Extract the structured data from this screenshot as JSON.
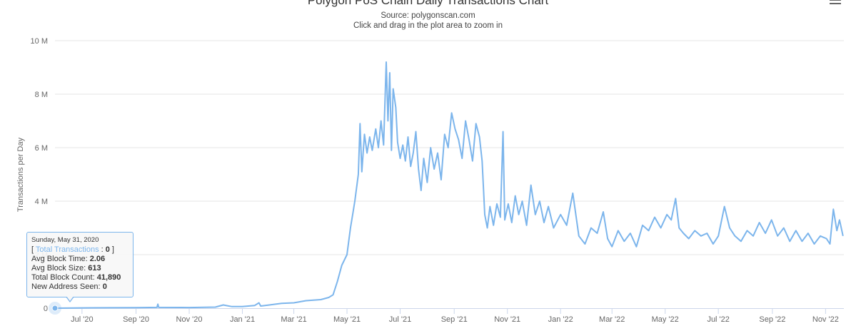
{
  "header": {
    "title": "Polygon PoS Chain Daily Transactions Chart",
    "subtitle_source": "Source: polygonscan.com",
    "subtitle_hint": "Click and drag in the plot area to zoom in",
    "menu_icon": "hamburger-menu-icon"
  },
  "colors": {
    "series": "#7cb5ec",
    "grid": "#e6e6e6",
    "axis_text": "#666666"
  },
  "tooltip": {
    "date": "Sunday, May 31, 2020",
    "series_label": "Total Transactions",
    "series_value": "0",
    "avg_block_time_label": "Avg Block Time:",
    "avg_block_time": "2.06",
    "avg_block_size_label": "Avg Block Size:",
    "avg_block_size": "613",
    "total_block_count_label": "Total Block Count:",
    "total_block_count": "41,890",
    "new_address_label": "New Address Seen:",
    "new_address": "0"
  },
  "chart_data": {
    "type": "line",
    "title": "Polygon PoS Chain Daily Transactions Chart",
    "subtitle": "Source: polygonscan.com",
    "ylabel": "Transactions per Day",
    "xlabel": "",
    "ylim": [
      0,
      10000000
    ],
    "yticks": [
      0,
      2000000,
      4000000,
      6000000,
      8000000,
      10000000
    ],
    "ytick_labels": [
      "0",
      "2 M",
      "4 M",
      "6 M",
      "8 M",
      "10 M"
    ],
    "xtick_labels": [
      "Jul '20",
      "Sep '20",
      "Nov '20",
      "Jan '21",
      "Mar '21",
      "May '21",
      "Jul '21",
      "Sep '21",
      "Nov '21",
      "Jan '22",
      "Mar '22",
      "May '22",
      "Jul '22",
      "Sep '22",
      "Nov '22"
    ],
    "xtick_dates": [
      "2020-07-01",
      "2020-09-01",
      "2020-11-01",
      "2021-01-01",
      "2021-03-01",
      "2021-05-01",
      "2021-07-01",
      "2021-09-01",
      "2021-11-01",
      "2022-01-01",
      "2022-03-01",
      "2022-05-01",
      "2022-07-01",
      "2022-09-01",
      "2022-11-01"
    ],
    "grid": true,
    "legend": "none",
    "series": [
      {
        "values": [
          {
            "x": "2020-05-31",
            "y": 0
          },
          {
            "x": "2020-07-01",
            "y": 10000
          },
          {
            "x": "2020-08-01",
            "y": 15000
          },
          {
            "x": "2020-09-01",
            "y": 20000
          },
          {
            "x": "2020-09-25",
            "y": 30000
          },
          {
            "x": "2020-09-26",
            "y": 150000
          },
          {
            "x": "2020-09-27",
            "y": 30000
          },
          {
            "x": "2020-11-01",
            "y": 25000
          },
          {
            "x": "2020-12-01",
            "y": 40000
          },
          {
            "x": "2020-12-10",
            "y": 120000
          },
          {
            "x": "2020-12-20",
            "y": 60000
          },
          {
            "x": "2021-01-01",
            "y": 60000
          },
          {
            "x": "2021-01-15",
            "y": 100000
          },
          {
            "x": "2021-01-20",
            "y": 200000
          },
          {
            "x": "2021-01-22",
            "y": 80000
          },
          {
            "x": "2021-02-01",
            "y": 120000
          },
          {
            "x": "2021-02-15",
            "y": 180000
          },
          {
            "x": "2021-03-01",
            "y": 200000
          },
          {
            "x": "2021-03-15",
            "y": 280000
          },
          {
            "x": "2021-04-01",
            "y": 320000
          },
          {
            "x": "2021-04-10",
            "y": 400000
          },
          {
            "x": "2021-04-15",
            "y": 500000
          },
          {
            "x": "2021-04-20",
            "y": 1000000
          },
          {
            "x": "2021-04-25",
            "y": 1600000
          },
          {
            "x": "2021-05-01",
            "y": 2000000
          },
          {
            "x": "2021-05-05",
            "y": 3000000
          },
          {
            "x": "2021-05-08",
            "y": 3600000
          },
          {
            "x": "2021-05-10",
            "y": 4000000
          },
          {
            "x": "2021-05-14",
            "y": 5000000
          },
          {
            "x": "2021-05-16",
            "y": 6900000
          },
          {
            "x": "2021-05-18",
            "y": 5100000
          },
          {
            "x": "2021-05-21",
            "y": 6500000
          },
          {
            "x": "2021-05-24",
            "y": 5800000
          },
          {
            "x": "2021-05-27",
            "y": 6400000
          },
          {
            "x": "2021-05-30",
            "y": 5900000
          },
          {
            "x": "2021-06-03",
            "y": 6700000
          },
          {
            "x": "2021-06-06",
            "y": 6000000
          },
          {
            "x": "2021-06-09",
            "y": 7000000
          },
          {
            "x": "2021-06-12",
            "y": 6100000
          },
          {
            "x": "2021-06-15",
            "y": 9200000
          },
          {
            "x": "2021-06-17",
            "y": 7000000
          },
          {
            "x": "2021-06-19",
            "y": 8800000
          },
          {
            "x": "2021-06-21",
            "y": 5900000
          },
          {
            "x": "2021-06-23",
            "y": 8200000
          },
          {
            "x": "2021-06-26",
            "y": 7500000
          },
          {
            "x": "2021-06-28",
            "y": 6200000
          },
          {
            "x": "2021-07-01",
            "y": 5600000
          },
          {
            "x": "2021-07-04",
            "y": 6100000
          },
          {
            "x": "2021-07-07",
            "y": 5500000
          },
          {
            "x": "2021-07-10",
            "y": 6400000
          },
          {
            "x": "2021-07-13",
            "y": 5300000
          },
          {
            "x": "2021-07-16",
            "y": 5800000
          },
          {
            "x": "2021-07-19",
            "y": 6600000
          },
          {
            "x": "2021-07-22",
            "y": 5200000
          },
          {
            "x": "2021-07-25",
            "y": 4400000
          },
          {
            "x": "2021-07-28",
            "y": 5600000
          },
          {
            "x": "2021-08-01",
            "y": 4700000
          },
          {
            "x": "2021-08-05",
            "y": 6000000
          },
          {
            "x": "2021-08-09",
            "y": 5200000
          },
          {
            "x": "2021-08-13",
            "y": 5800000
          },
          {
            "x": "2021-08-17",
            "y": 4800000
          },
          {
            "x": "2021-08-21",
            "y": 6500000
          },
          {
            "x": "2021-08-25",
            "y": 6000000
          },
          {
            "x": "2021-08-29",
            "y": 7300000
          },
          {
            "x": "2021-09-02",
            "y": 6700000
          },
          {
            "x": "2021-09-06",
            "y": 6300000
          },
          {
            "x": "2021-09-10",
            "y": 5600000
          },
          {
            "x": "2021-09-14",
            "y": 7000000
          },
          {
            "x": "2021-09-18",
            "y": 6300000
          },
          {
            "x": "2021-09-22",
            "y": 5500000
          },
          {
            "x": "2021-09-26",
            "y": 6900000
          },
          {
            "x": "2021-09-30",
            "y": 6400000
          },
          {
            "x": "2021-10-03",
            "y": 5500000
          },
          {
            "x": "2021-10-06",
            "y": 3500000
          },
          {
            "x": "2021-10-09",
            "y": 3000000
          },
          {
            "x": "2021-10-12",
            "y": 3800000
          },
          {
            "x": "2021-10-16",
            "y": 3100000
          },
          {
            "x": "2021-10-20",
            "y": 3900000
          },
          {
            "x": "2021-10-24",
            "y": 3400000
          },
          {
            "x": "2021-10-27",
            "y": 6600000
          },
          {
            "x": "2021-10-29",
            "y": 3300000
          },
          {
            "x": "2021-11-02",
            "y": 3900000
          },
          {
            "x": "2021-11-06",
            "y": 3200000
          },
          {
            "x": "2021-11-10",
            "y": 4200000
          },
          {
            "x": "2021-11-14",
            "y": 3500000
          },
          {
            "x": "2021-11-18",
            "y": 4000000
          },
          {
            "x": "2021-11-23",
            "y": 3100000
          },
          {
            "x": "2021-11-28",
            "y": 4600000
          },
          {
            "x": "2021-12-03",
            "y": 3500000
          },
          {
            "x": "2021-12-08",
            "y": 4000000
          },
          {
            "x": "2021-12-13",
            "y": 3200000
          },
          {
            "x": "2021-12-18",
            "y": 3800000
          },
          {
            "x": "2021-12-24",
            "y": 3000000
          },
          {
            "x": "2022-01-01",
            "y": 3500000
          },
          {
            "x": "2022-01-08",
            "y": 3100000
          },
          {
            "x": "2022-01-15",
            "y": 4300000
          },
          {
            "x": "2022-01-22",
            "y": 2700000
          },
          {
            "x": "2022-01-29",
            "y": 2400000
          },
          {
            "x": "2022-02-05",
            "y": 3000000
          },
          {
            "x": "2022-02-12",
            "y": 2800000
          },
          {
            "x": "2022-02-19",
            "y": 3600000
          },
          {
            "x": "2022-02-24",
            "y": 2600000
          },
          {
            "x": "2022-03-01",
            "y": 2300000
          },
          {
            "x": "2022-03-08",
            "y": 2900000
          },
          {
            "x": "2022-03-15",
            "y": 2500000
          },
          {
            "x": "2022-03-22",
            "y": 2800000
          },
          {
            "x": "2022-03-29",
            "y": 2300000
          },
          {
            "x": "2022-04-05",
            "y": 3100000
          },
          {
            "x": "2022-04-12",
            "y": 2900000
          },
          {
            "x": "2022-04-19",
            "y": 3400000
          },
          {
            "x": "2022-04-26",
            "y": 3000000
          },
          {
            "x": "2022-05-03",
            "y": 3500000
          },
          {
            "x": "2022-05-08",
            "y": 3300000
          },
          {
            "x": "2022-05-13",
            "y": 4100000
          },
          {
            "x": "2022-05-17",
            "y": 3000000
          },
          {
            "x": "2022-05-22",
            "y": 2800000
          },
          {
            "x": "2022-05-28",
            "y": 2600000
          },
          {
            "x": "2022-06-04",
            "y": 2900000
          },
          {
            "x": "2022-06-11",
            "y": 2700000
          },
          {
            "x": "2022-06-18",
            "y": 2800000
          },
          {
            "x": "2022-06-25",
            "y": 2400000
          },
          {
            "x": "2022-07-01",
            "y": 2700000
          },
          {
            "x": "2022-07-08",
            "y": 3800000
          },
          {
            "x": "2022-07-14",
            "y": 3000000
          },
          {
            "x": "2022-07-20",
            "y": 2700000
          },
          {
            "x": "2022-07-27",
            "y": 2500000
          },
          {
            "x": "2022-08-03",
            "y": 2900000
          },
          {
            "x": "2022-08-10",
            "y": 2700000
          },
          {
            "x": "2022-08-17",
            "y": 3200000
          },
          {
            "x": "2022-08-24",
            "y": 2800000
          },
          {
            "x": "2022-08-31",
            "y": 3300000
          },
          {
            "x": "2022-09-07",
            "y": 2700000
          },
          {
            "x": "2022-09-14",
            "y": 3000000
          },
          {
            "x": "2022-09-21",
            "y": 2500000
          },
          {
            "x": "2022-09-28",
            "y": 2900000
          },
          {
            "x": "2022-10-05",
            "y": 2500000
          },
          {
            "x": "2022-10-12",
            "y": 2800000
          },
          {
            "x": "2022-10-19",
            "y": 2400000
          },
          {
            "x": "2022-10-26",
            "y": 2700000
          },
          {
            "x": "2022-11-02",
            "y": 2600000
          },
          {
            "x": "2022-11-06",
            "y": 2400000
          },
          {
            "x": "2022-11-10",
            "y": 3700000
          },
          {
            "x": "2022-11-14",
            "y": 2900000
          },
          {
            "x": "2022-11-17",
            "y": 3300000
          },
          {
            "x": "2022-11-21",
            "y": 2700000
          }
        ]
      }
    ]
  }
}
